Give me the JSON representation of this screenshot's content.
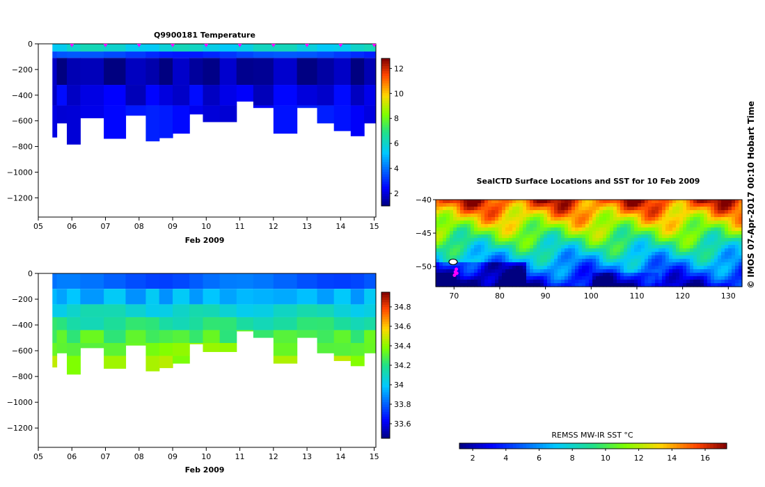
{
  "credit": "© IMOS 07-Apr-2017 00:10 Hobart Time",
  "chart_data": [
    {
      "id": "temperature",
      "type": "heatmap",
      "title": "Q9900181  Temperature",
      "xlabel": "Feb 2009",
      "ylabel": "",
      "xlim": [
        5,
        15.05
      ],
      "ylim": [
        -1350,
        0
      ],
      "x_ticks": [
        "05",
        "06",
        "07",
        "08",
        "09",
        "10",
        "11",
        "12",
        "13",
        "14",
        "15"
      ],
      "y_ticks": [
        0,
        -200,
        -400,
        -600,
        -800,
        -1000,
        -1200
      ],
      "colorbar": {
        "min": 1,
        "max": 12.8,
        "ticks": [
          2,
          4,
          6,
          8,
          10,
          12
        ]
      },
      "surface_markers": [
        6,
        7,
        8,
        9,
        10,
        11,
        12,
        13,
        14,
        15
      ],
      "profiles": [
        {
          "t": 5.42,
          "depth": 730
        },
        {
          "t": 5.55,
          "depth": 620
        },
        {
          "t": 5.85,
          "depth": 785
        },
        {
          "t": 6.25,
          "depth": 580
        },
        {
          "t": 6.95,
          "depth": 740
        },
        {
          "t": 7.6,
          "depth": 560
        },
        {
          "t": 8.2,
          "depth": 760
        },
        {
          "t": 8.6,
          "depth": 735
        },
        {
          "t": 9.0,
          "depth": 700
        },
        {
          "t": 9.5,
          "depth": 550
        },
        {
          "t": 9.9,
          "depth": 610
        },
        {
          "t": 10.4,
          "depth": 610
        },
        {
          "t": 10.9,
          "depth": 450
        },
        {
          "t": 11.4,
          "depth": 500
        },
        {
          "t": 12.0,
          "depth": 700
        },
        {
          "t": 12.7,
          "depth": 500
        },
        {
          "t": 13.3,
          "depth": 620
        },
        {
          "t": 13.8,
          "depth": 680
        },
        {
          "t": 14.3,
          "depth": 720
        },
        {
          "t": 14.7,
          "depth": 620
        }
      ],
      "value_layers": [
        {
          "top": 0,
          "bottom": 60,
          "value": 5.8
        },
        {
          "top": 60,
          "bottom": 110,
          "value": 3.2
        },
        {
          "top": 110,
          "bottom": 320,
          "value": 1.4
        },
        {
          "top": 320,
          "bottom": 480,
          "value": 2.1
        },
        {
          "top": 480,
          "bottom": 900,
          "value": 2.4
        }
      ]
    },
    {
      "id": "salinity",
      "type": "heatmap",
      "title": "",
      "xlabel": "Feb 2009",
      "ylabel": "",
      "xlim": [
        5,
        15.05
      ],
      "ylim": [
        -1350,
        0
      ],
      "x_ticks": [
        "05",
        "06",
        "07",
        "08",
        "09",
        "10",
        "11",
        "12",
        "13",
        "14",
        "15"
      ],
      "y_ticks": [
        0,
        -200,
        -400,
        -600,
        -800,
        -1000,
        -1200
      ],
      "colorbar": {
        "min": 33.45,
        "max": 34.95,
        "ticks": [
          "34.8",
          "34.6",
          "34.4",
          "34.2",
          "34",
          "33.8",
          "33.6"
        ]
      },
      "value_layers": [
        {
          "top": 0,
          "bottom": 120,
          "value": 33.8
        },
        {
          "top": 120,
          "bottom": 240,
          "value": 33.95
        },
        {
          "top": 240,
          "bottom": 340,
          "value": 34.08
        },
        {
          "top": 340,
          "bottom": 440,
          "value": 34.18
        },
        {
          "top": 440,
          "bottom": 540,
          "value": 34.28
        },
        {
          "top": 540,
          "bottom": 640,
          "value": 34.36
        },
        {
          "top": 640,
          "bottom": 900,
          "value": 34.42
        }
      ]
    },
    {
      "id": "sst-map",
      "type": "heatmap",
      "title": "SealCTD Surface Locations and SST for 10 Feb 2009",
      "xlabel": "",
      "ylabel": "",
      "xlim": [
        66,
        133
      ],
      "ylim": [
        -53,
        -40
      ],
      "x_ticks": [
        70,
        80,
        90,
        100,
        110,
        120,
        130
      ],
      "y_ticks": [
        -40,
        -45,
        -50
      ],
      "colorbar": {
        "label": "REMSS MW-IR SST °C",
        "min": 1.2,
        "max": 17.3,
        "ticks": [
          2,
          4,
          6,
          8,
          10,
          12,
          14,
          16
        ]
      },
      "locations": [
        {
          "lon": 69.8,
          "lat": -49.3,
          "kind": "island"
        },
        {
          "lon": 70.5,
          "lat": -50.4,
          "kind": "profile"
        },
        {
          "lon": 70.3,
          "lat": -50.8,
          "kind": "profile"
        },
        {
          "lon": 70.6,
          "lat": -51.0,
          "kind": "profile"
        },
        {
          "lon": 70.1,
          "lat": -51.3,
          "kind": "profile"
        }
      ]
    }
  ]
}
